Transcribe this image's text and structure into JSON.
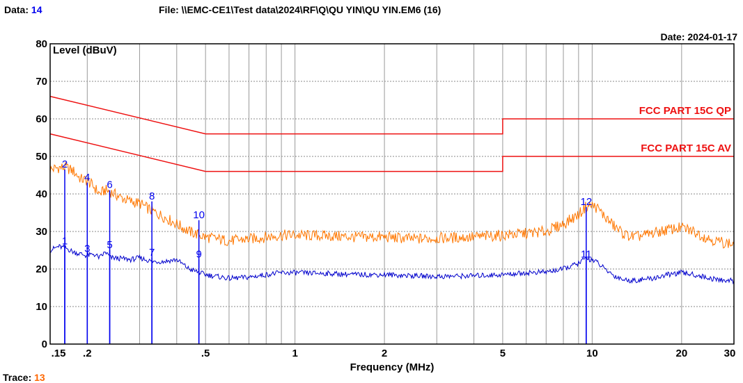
{
  "header": {
    "data_label": "Data:",
    "data_value": "14",
    "file_label": "File:",
    "file_path": "\\\\EMC-CE1\\Test data\\2024\\RF\\Q\\QU YIN\\QU YIN.EM6  (16)",
    "date_label": "Date:",
    "date_value": "2024-01-17",
    "trace_label": "Trace:",
    "trace_value": "13"
  },
  "colors": {
    "limit": "#ee1111",
    "qp_trace": "#ff7700",
    "av_trace": "#0000cc",
    "marker": "#0000ee",
    "grid": "#888888"
  },
  "chart_data": {
    "type": "line",
    "xscale": "log",
    "ylabel": "Level (dBuV)",
    "xlabel": "Frequency (MHz)",
    "xlim": [
      0.15,
      30
    ],
    "ylim": [
      0,
      80
    ],
    "grid": true,
    "y_ticks": [
      0,
      10,
      20,
      30,
      40,
      50,
      60,
      70,
      80
    ],
    "x_ticks": [
      {
        "value": 0.15,
        "label": ".15"
      },
      {
        "value": 0.2,
        "label": ".2"
      },
      {
        "value": 0.5,
        "label": ".5"
      },
      {
        "value": 1,
        "label": "1"
      },
      {
        "value": 2,
        "label": "2"
      },
      {
        "value": 5,
        "label": "5"
      },
      {
        "value": 10,
        "label": "10"
      },
      {
        "value": 20,
        "label": "20"
      },
      {
        "value": 30,
        "label": "30"
      }
    ],
    "limits": [
      {
        "name": "FCC PART 15C QP",
        "points": [
          [
            0.15,
            66
          ],
          [
            0.5,
            56
          ],
          [
            5,
            56
          ],
          [
            5,
            60
          ],
          [
            30,
            60
          ]
        ]
      },
      {
        "name": "FCC PART 15C AV",
        "points": [
          [
            0.15,
            56
          ],
          [
            0.5,
            46
          ],
          [
            5,
            46
          ],
          [
            5,
            50
          ],
          [
            30,
            50
          ]
        ]
      }
    ],
    "series": [
      {
        "key": "qp",
        "points": [
          [
            0.15,
            46.5
          ],
          [
            0.16,
            47
          ],
          [
            0.17,
            47
          ],
          [
            0.18,
            46
          ],
          [
            0.19,
            44
          ],
          [
            0.2,
            43.5
          ],
          [
            0.21,
            42
          ],
          [
            0.22,
            40
          ],
          [
            0.23,
            41
          ],
          [
            0.24,
            40.5
          ],
          [
            0.26,
            39
          ],
          [
            0.28,
            38
          ],
          [
            0.3,
            37.5
          ],
          [
            0.33,
            35.5
          ],
          [
            0.36,
            34
          ],
          [
            0.4,
            32
          ],
          [
            0.44,
            30
          ],
          [
            0.5,
            28.5
          ],
          [
            0.6,
            27.5
          ],
          [
            0.7,
            28
          ],
          [
            0.8,
            28.5
          ],
          [
            0.9,
            29
          ],
          [
            1,
            29
          ],
          [
            1.3,
            28.8
          ],
          [
            1.6,
            28.5
          ],
          [
            2,
            28.5
          ],
          [
            2.5,
            28
          ],
          [
            3,
            28.2
          ],
          [
            4,
            28.5
          ],
          [
            5,
            29
          ],
          [
            6,
            29.5
          ],
          [
            7,
            30
          ],
          [
            8,
            32
          ],
          [
            9,
            34.5
          ],
          [
            9.5,
            36.5
          ],
          [
            10,
            37
          ],
          [
            10.5,
            36
          ],
          [
            11,
            34
          ],
          [
            12,
            31
          ],
          [
            13,
            29
          ],
          [
            14,
            28.5
          ],
          [
            16,
            29.5
          ],
          [
            18,
            30.5
          ],
          [
            20,
            31
          ],
          [
            22,
            30
          ],
          [
            24,
            28.5
          ],
          [
            26,
            27.5
          ],
          [
            28,
            27
          ],
          [
            30,
            26.5
          ]
        ]
      },
      {
        "key": "av",
        "points": [
          [
            0.15,
            25
          ],
          [
            0.16,
            26
          ],
          [
            0.17,
            25.5
          ],
          [
            0.18,
            24.5
          ],
          [
            0.19,
            24
          ],
          [
            0.2,
            23.5
          ],
          [
            0.21,
            24
          ],
          [
            0.22,
            23
          ],
          [
            0.23,
            24.5
          ],
          [
            0.24,
            23
          ],
          [
            0.26,
            22.8
          ],
          [
            0.28,
            22.5
          ],
          [
            0.3,
            23
          ],
          [
            0.33,
            22
          ],
          [
            0.36,
            22
          ],
          [
            0.4,
            22.5
          ],
          [
            0.44,
            20
          ],
          [
            0.5,
            18.5
          ],
          [
            0.6,
            17.5
          ],
          [
            0.7,
            17.8
          ],
          [
            0.8,
            18.5
          ],
          [
            0.9,
            19
          ],
          [
            1,
            19
          ],
          [
            1.3,
            18.8
          ],
          [
            1.6,
            18.5
          ],
          [
            2,
            18.5
          ],
          [
            2.5,
            18.2
          ],
          [
            3,
            18
          ],
          [
            4,
            18.2
          ],
          [
            5,
            18.5
          ],
          [
            6,
            19
          ],
          [
            7,
            19.2
          ],
          [
            8,
            20
          ],
          [
            9,
            21.5
          ],
          [
            9.5,
            22.8
          ],
          [
            10,
            22.5
          ],
          [
            10.5,
            21.5
          ],
          [
            11,
            20
          ],
          [
            12,
            18
          ],
          [
            13,
            17
          ],
          [
            14,
            17
          ],
          [
            16,
            17.5
          ],
          [
            18,
            18.5
          ],
          [
            20,
            19
          ],
          [
            22,
            18.5
          ],
          [
            24,
            17.8
          ],
          [
            26,
            17.2
          ],
          [
            28,
            17
          ],
          [
            30,
            16.8
          ]
        ]
      }
    ],
    "markers": [
      {
        "label": "1",
        "freq": 0.168,
        "level": 26
      },
      {
        "label": "2",
        "freq": 0.168,
        "level": 46.5
      },
      {
        "label": "3",
        "freq": 0.2,
        "level": 24
      },
      {
        "label": "4",
        "freq": 0.2,
        "level": 43
      },
      {
        "label": "5",
        "freq": 0.238,
        "level": 25
      },
      {
        "label": "6",
        "freq": 0.238,
        "level": 41
      },
      {
        "label": "7",
        "freq": 0.33,
        "level": 23
      },
      {
        "label": "8",
        "freq": 0.33,
        "level": 38
      },
      {
        "label": "9",
        "freq": 0.475,
        "level": 22.5
      },
      {
        "label": "10",
        "freq": 0.475,
        "level": 33
      },
      {
        "label": "11",
        "freq": 9.55,
        "level": 22.5
      },
      {
        "label": "12",
        "freq": 9.55,
        "level": 36.5
      }
    ]
  }
}
